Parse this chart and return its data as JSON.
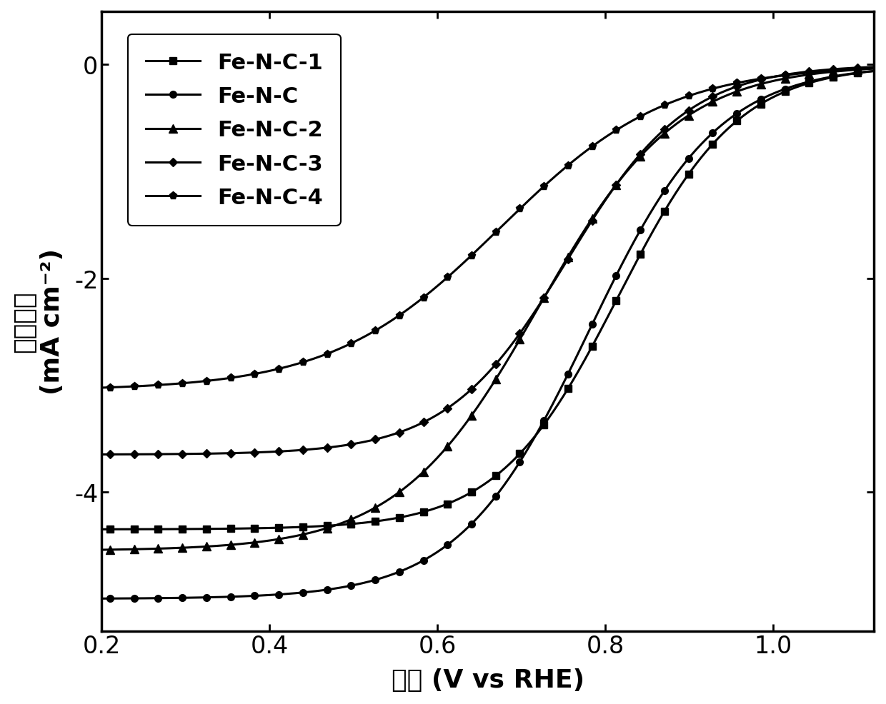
{
  "xlabel": "电压 (V vs RHE)",
  "ylabel": "电流密度\n(mA cm⁻²)",
  "xlim": [
    0.2,
    1.12
  ],
  "ylim": [
    -5.3,
    0.5
  ],
  "yticks": [
    0,
    -2,
    -4
  ],
  "xticks": [
    0.2,
    0.4,
    0.6,
    0.8,
    1.0
  ],
  "background_color": "#ffffff",
  "curve_params": [
    {
      "label": "Fe-N-C-1",
      "marker": "s",
      "limit": -4.35,
      "half_wave": 0.815,
      "steep": 14,
      "marker_size": 7
    },
    {
      "label": "Fe-N-C",
      "marker": "o",
      "limit": -5.0,
      "half_wave": 0.78,
      "steep": 13,
      "marker_size": 7
    },
    {
      "label": "Fe-N-C-2",
      "marker": "^",
      "limit": -4.55,
      "half_wave": 0.72,
      "steep": 12,
      "marker_size": 8
    },
    {
      "label": "Fe-N-C-3",
      "marker": "D",
      "limit": -3.65,
      "half_wave": 0.755,
      "steep": 14,
      "marker_size": 6
    },
    {
      "label": "Fe-N-C-4",
      "marker": "p",
      "limit": -3.05,
      "half_wave": 0.675,
      "steep": 10,
      "marker_size": 8
    }
  ],
  "font_size_label": 26,
  "font_size_tick": 24,
  "font_size_legend": 22,
  "line_width": 2.2
}
